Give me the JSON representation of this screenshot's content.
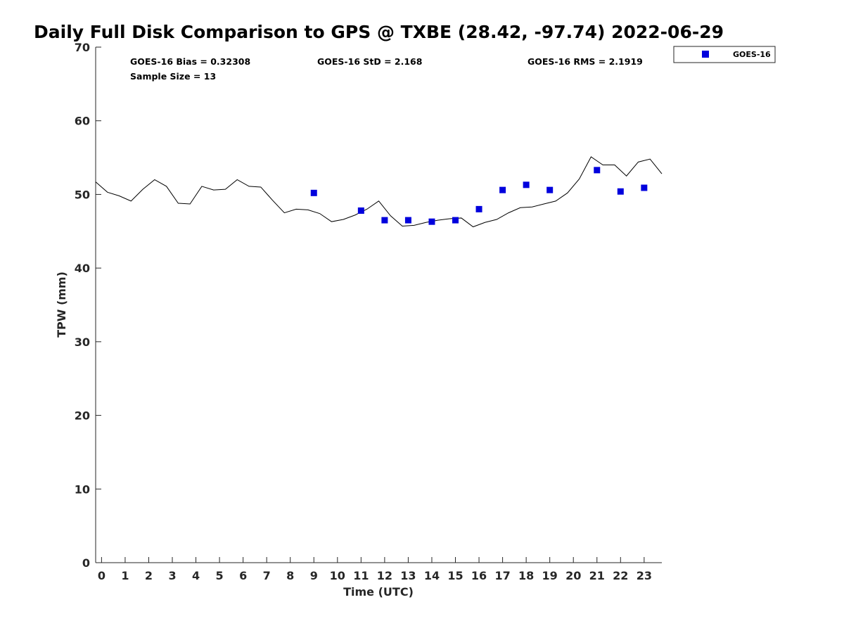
{
  "chart_data": {
    "type": "scatter",
    "title": "Daily Full Disk Comparison to GPS @ TXBE (28.42, -97.74) 2022-06-29",
    "xlabel": "Time (UTC)",
    "ylabel": "TPW (mm)",
    "xlim": [
      -0.25,
      23.75
    ],
    "ylim": [
      0,
      70
    ],
    "x_ticks": [
      "0",
      "1",
      "2",
      "3",
      "4",
      "5",
      "6",
      "7",
      "8",
      "9",
      "10",
      "11",
      "12",
      "13",
      "14",
      "15",
      "16",
      "17",
      "18",
      "19",
      "20",
      "21",
      "22",
      "23"
    ],
    "y_ticks": [
      "0",
      "10",
      "20",
      "30",
      "40",
      "50",
      "60",
      "70"
    ],
    "grid": false,
    "legend_position": "top-right",
    "series": [
      {
        "name": "GOES-16",
        "kind": "scatter",
        "marker": "square",
        "color": "#0000dd",
        "x": [
          9,
          11,
          12,
          13,
          14,
          15,
          16,
          17,
          18,
          19,
          21,
          22,
          23
        ],
        "y": [
          50.2,
          47.8,
          46.5,
          46.5,
          46.3,
          46.5,
          48.0,
          50.6,
          51.3,
          50.6,
          53.3,
          50.4,
          50.9
        ]
      },
      {
        "kind": "line",
        "color": "#000000",
        "x": [
          -0.25,
          0.25,
          0.75,
          1.25,
          1.75,
          2.25,
          2.75,
          3.25,
          3.75,
          4.25,
          4.75,
          5.25,
          5.75,
          6.25,
          6.75,
          7.25,
          7.75,
          8.25,
          8.75,
          9.25,
          9.75,
          10.25,
          10.75,
          11.25,
          11.75,
          12.25,
          12.75,
          13.25,
          13.75,
          14.25,
          14.75,
          15.25,
          15.75,
          16.25,
          16.75,
          17.25,
          17.75,
          18.25,
          18.75,
          19.25,
          19.75,
          20.25,
          20.75,
          21.25,
          21.75,
          22.25,
          22.75,
          23.25,
          23.75
        ],
        "y": [
          51.7,
          50.3,
          49.8,
          49.1,
          50.7,
          52.0,
          51.1,
          48.8,
          48.7,
          51.1,
          50.6,
          50.7,
          52.0,
          51.1,
          51.0,
          49.2,
          47.5,
          48.0,
          47.9,
          47.4,
          46.3,
          46.6,
          47.2,
          48.0,
          49.1,
          47.1,
          45.7,
          45.8,
          46.2,
          46.5,
          46.7,
          46.8,
          45.6,
          46.2,
          46.6,
          47.5,
          48.2,
          48.3,
          48.7,
          49.1,
          50.2,
          52.1,
          55.1,
          54.0,
          54.0,
          52.5,
          54.4,
          54.8,
          52.8
        ]
      }
    ],
    "annotations": {
      "bias": "GOES-16 Bias = 0.32308",
      "std": "GOES-16 StD = 2.168",
      "rms": "GOES-16 RMS = 2.1919",
      "sample": "Sample Size = 13"
    }
  }
}
